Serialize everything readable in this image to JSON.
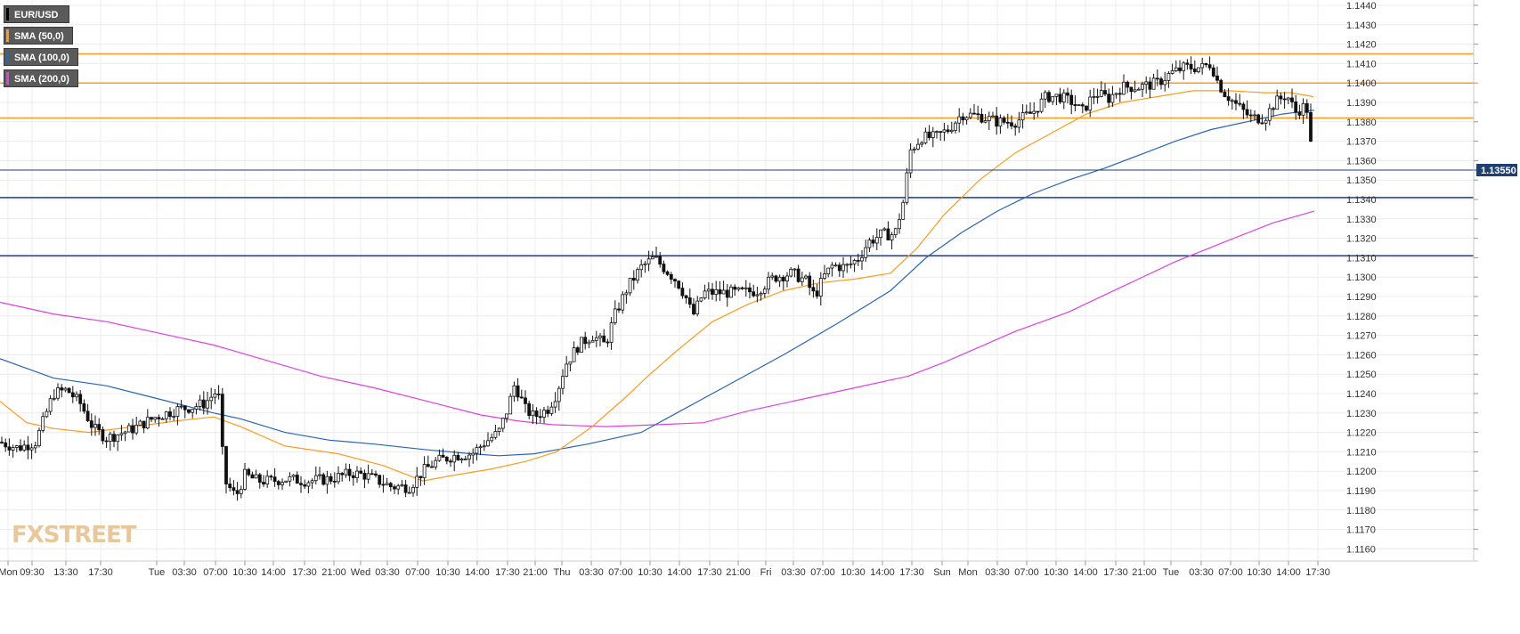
{
  "legend": [
    {
      "label": "EUR/USD",
      "color": "#000000"
    },
    {
      "label": "SMA (50,0)",
      "color": "#ff9a1f"
    },
    {
      "label": "SMA (100,0)",
      "color": "#2a64b8"
    },
    {
      "label": "SMA (200,0)",
      "color": "#e040e0"
    }
  ],
  "watermark": "FXSTREET",
  "price_tag": "1.13550",
  "chart_data": {
    "type": "candlestick",
    "symbol": "EUR/USD",
    "ylim": [
      1.1152,
      1.1444
    ],
    "y_ticks": [
      "1.1160",
      "1.1170",
      "1.1180",
      "1.1190",
      "1.1200",
      "1.1210",
      "1.1220",
      "1.1230",
      "1.1240",
      "1.1250",
      "1.1260",
      "1.1270",
      "1.1280",
      "1.1290",
      "1.1300",
      "1.1310",
      "1.1320",
      "1.1330",
      "1.1340",
      "1.1350",
      "1.1360",
      "1.1370",
      "1.1380",
      "1.1390",
      "1.1400",
      "1.1410",
      "1.1420",
      "1.1430",
      "1.1440"
    ],
    "x_ticks": [
      "Mon",
      "09:30",
      "13:30",
      "17:30",
      "Tue",
      "03:30",
      "07:00",
      "10:30",
      "14:00",
      "17:30",
      "21:00",
      "Wed",
      "03:30",
      "07:00",
      "10:30",
      "14:00",
      "17:30",
      "21:00",
      "Thu",
      "03:30",
      "07:00",
      "10:30",
      "14:00",
      "17:30",
      "21:00",
      "Fri",
      "03:30",
      "07:00",
      "10:30",
      "14:00",
      "17:30",
      "Sun",
      "Mon",
      "03:30",
      "07:00",
      "10:30",
      "14:00",
      "17:30",
      "21:00",
      "Tue",
      "03:30",
      "07:00",
      "10:30",
      "14:00",
      "17:30"
    ],
    "current_price": 1.1355,
    "horizontal_levels": [
      {
        "value": 1.1415,
        "color": "#ff9a1f"
      },
      {
        "value": 1.14,
        "color": "#ff9a1f"
      },
      {
        "value": 1.1382,
        "color": "#ff9a1f"
      },
      {
        "value": 1.1341,
        "color": "#1a3f8f"
      },
      {
        "value": 1.1311,
        "color": "#1a3f8f"
      }
    ],
    "price_path": [
      [
        0,
        1.1215
      ],
      [
        20,
        1.1212
      ],
      [
        40,
        1.1215
      ],
      [
        60,
        1.124
      ],
      [
        75,
        1.1242
      ],
      [
        90,
        1.1235
      ],
      [
        105,
        1.1222
      ],
      [
        120,
        1.1217
      ],
      [
        150,
        1.1222
      ],
      [
        175,
        1.1228
      ],
      [
        200,
        1.1232
      ],
      [
        215,
        1.1233
      ],
      [
        230,
        1.1235
      ],
      [
        245,
        1.1242
      ],
      [
        252,
        1.1195
      ],
      [
        265,
        1.1187
      ],
      [
        275,
        1.1198
      ],
      [
        290,
        1.1195
      ],
      [
        305,
        1.1195
      ],
      [
        320,
        1.1196
      ],
      [
        345,
        1.1195
      ],
      [
        370,
        1.1196
      ],
      [
        395,
        1.1199
      ],
      [
        410,
        1.1198
      ],
      [
        425,
        1.1195
      ],
      [
        440,
        1.1192
      ],
      [
        460,
        1.1192
      ],
      [
        475,
        1.12
      ],
      [
        490,
        1.1205
      ],
      [
        510,
        1.1208
      ],
      [
        530,
        1.1209
      ],
      [
        545,
        1.1215
      ],
      [
        560,
        1.122
      ],
      [
        570,
        1.1232
      ],
      [
        578,
        1.1245
      ],
      [
        590,
        1.1232
      ],
      [
        600,
        1.1228
      ],
      [
        615,
        1.1232
      ],
      [
        625,
        1.124
      ],
      [
        635,
        1.1255
      ],
      [
        650,
        1.1265
      ],
      [
        665,
        1.127
      ],
      [
        680,
        1.1265
      ],
      [
        690,
        1.128
      ],
      [
        705,
        1.1295
      ],
      [
        720,
        1.1305
      ],
      [
        735,
        1.131
      ],
      [
        745,
        1.1305
      ],
      [
        760,
        1.1298
      ],
      [
        770,
        1.129
      ],
      [
        778,
        1.128
      ],
      [
        790,
        1.1292
      ],
      [
        810,
        1.1292
      ],
      [
        830,
        1.1292
      ],
      [
        850,
        1.1293
      ],
      [
        870,
        1.13
      ],
      [
        890,
        1.1302
      ],
      [
        905,
        1.1298
      ],
      [
        915,
        1.129
      ],
      [
        925,
        1.13
      ],
      [
        935,
        1.1306
      ],
      [
        950,
        1.1305
      ],
      [
        965,
        1.131
      ],
      [
        975,
        1.1318
      ],
      [
        990,
        1.1322
      ],
      [
        1005,
        1.1322
      ],
      [
        1015,
        1.134
      ],
      [
        1022,
        1.1365
      ],
      [
        1035,
        1.1372
      ],
      [
        1050,
        1.1372
      ],
      [
        1065,
        1.1376
      ],
      [
        1080,
        1.1384
      ],
      [
        1100,
        1.1383
      ],
      [
        1120,
        1.138
      ],
      [
        1140,
        1.138
      ],
      [
        1160,
        1.1385
      ],
      [
        1175,
        1.1393
      ],
      [
        1190,
        1.1393
      ],
      [
        1205,
        1.139
      ],
      [
        1215,
        1.1385
      ],
      [
        1230,
        1.1395
      ],
      [
        1245,
        1.1392
      ],
      [
        1260,
        1.1398
      ],
      [
        1280,
        1.1398
      ],
      [
        1300,
        1.14
      ],
      [
        1315,
        1.1405
      ],
      [
        1330,
        1.1408
      ],
      [
        1350,
        1.1408
      ],
      [
        1360,
        1.141
      ],
      [
        1368,
        1.14
      ],
      [
        1375,
        1.1395
      ],
      [
        1390,
        1.1388
      ],
      [
        1405,
        1.1382
      ],
      [
        1420,
        1.1382
      ],
      [
        1432,
        1.139
      ],
      [
        1445,
        1.1394
      ],
      [
        1455,
        1.1385
      ],
      [
        1465,
        1.1388
      ],
      [
        1470,
        1.1385
      ],
      [
        1473,
        1.136
      ],
      [
        1478,
        1.1355
      ]
    ],
    "sma_50": [
      [
        0,
        1.1236
      ],
      [
        30,
        1.1225
      ],
      [
        60,
        1.1222
      ],
      [
        100,
        1.122
      ],
      [
        150,
        1.1223
      ],
      [
        200,
        1.1226
      ],
      [
        240,
        1.1228
      ],
      [
        270,
        1.1223
      ],
      [
        320,
        1.1213
      ],
      [
        380,
        1.1209
      ],
      [
        430,
        1.1203
      ],
      [
        475,
        1.1195
      ],
      [
        510,
        1.1198
      ],
      [
        550,
        1.1201
      ],
      [
        590,
        1.1205
      ],
      [
        625,
        1.121
      ],
      [
        665,
        1.1223
      ],
      [
        700,
        1.1237
      ],
      [
        730,
        1.125
      ],
      [
        760,
        1.1262
      ],
      [
        800,
        1.1277
      ],
      [
        840,
        1.1286
      ],
      [
        880,
        1.1293
      ],
      [
        920,
        1.1297
      ],
      [
        960,
        1.1299
      ],
      [
        1000,
        1.1302
      ],
      [
        1030,
        1.1315
      ],
      [
        1060,
        1.1332
      ],
      [
        1100,
        1.135
      ],
      [
        1140,
        1.1364
      ],
      [
        1180,
        1.1374
      ],
      [
        1220,
        1.1384
      ],
      [
        1260,
        1.139
      ],
      [
        1300,
        1.1393
      ],
      [
        1340,
        1.1396
      ],
      [
        1380,
        1.1396
      ],
      [
        1420,
        1.1395
      ],
      [
        1450,
        1.1395
      ],
      [
        1475,
        1.1393
      ]
    ],
    "sma_100": [
      [
        0,
        1.1258
      ],
      [
        60,
        1.1248
      ],
      [
        120,
        1.1244
      ],
      [
        180,
        1.1237
      ],
      [
        240,
        1.123
      ],
      [
        270,
        1.1227
      ],
      [
        320,
        1.122
      ],
      [
        370,
        1.1216
      ],
      [
        420,
        1.1214
      ],
      [
        480,
        1.1211
      ],
      [
        530,
        1.1209
      ],
      [
        560,
        1.1208
      ],
      [
        600,
        1.1209
      ],
      [
        660,
        1.1214
      ],
      [
        720,
        1.122
      ],
      [
        760,
        1.123
      ],
      [
        820,
        1.1245
      ],
      [
        880,
        1.126
      ],
      [
        940,
        1.1276
      ],
      [
        1000,
        1.1293
      ],
      [
        1040,
        1.131
      ],
      [
        1080,
        1.1323
      ],
      [
        1120,
        1.1334
      ],
      [
        1160,
        1.1343
      ],
      [
        1200,
        1.135
      ],
      [
        1240,
        1.1356
      ],
      [
        1280,
        1.1363
      ],
      [
        1320,
        1.137
      ],
      [
        1360,
        1.1376
      ],
      [
        1400,
        1.138
      ],
      [
        1440,
        1.1384
      ],
      [
        1476,
        1.1386
      ]
    ],
    "sma_200": [
      [
        0,
        1.1287
      ],
      [
        60,
        1.1281
      ],
      [
        120,
        1.1277
      ],
      [
        180,
        1.1271
      ],
      [
        240,
        1.1265
      ],
      [
        300,
        1.1257
      ],
      [
        360,
        1.1249
      ],
      [
        420,
        1.1243
      ],
      [
        480,
        1.1236
      ],
      [
        540,
        1.1229
      ],
      [
        580,
        1.1226
      ],
      [
        620,
        1.1224
      ],
      [
        680,
        1.1223
      ],
      [
        740,
        1.1224
      ],
      [
        790,
        1.1225
      ],
      [
        840,
        1.1231
      ],
      [
        900,
        1.1237
      ],
      [
        960,
        1.1243
      ],
      [
        1020,
        1.1249
      ],
      [
        1060,
        1.1256
      ],
      [
        1100,
        1.1264
      ],
      [
        1140,
        1.1272
      ],
      [
        1200,
        1.1282
      ],
      [
        1260,
        1.1295
      ],
      [
        1320,
        1.1308
      ],
      [
        1380,
        1.1319
      ],
      [
        1430,
        1.1328
      ],
      [
        1476,
        1.1334
      ]
    ]
  }
}
